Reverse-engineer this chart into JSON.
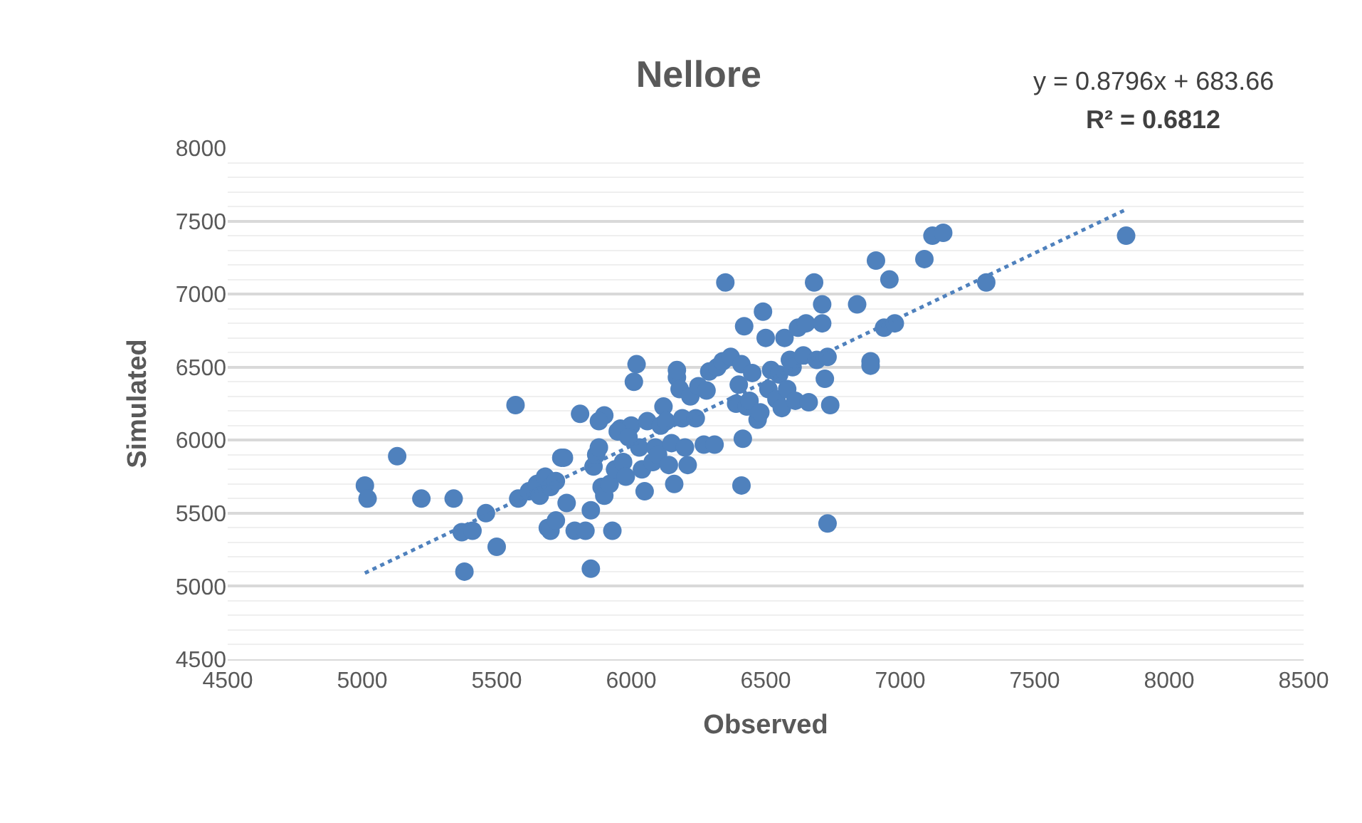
{
  "chart_data": {
    "type": "scatter",
    "title": "Nellore",
    "xlabel": "Observed",
    "ylabel": "Simulated",
    "annotations": [
      "y = 0.8796x + 683.66",
      "R² = 0.6812"
    ],
    "xlim": [
      4500,
      8500
    ],
    "xticks": [
      4500,
      5000,
      5500,
      6000,
      6500,
      7000,
      7500,
      8000,
      8500
    ],
    "ylim": [
      4500,
      8000
    ],
    "yticks": [
      4500,
      5000,
      5500,
      6000,
      6500,
      7000,
      7500,
      8000
    ],
    "grid": "y",
    "series": [
      {
        "color": "#4f81bd",
        "marker": "circle",
        "x": [
          5010,
          5020,
          5130,
          5220,
          5340,
          5570,
          5380,
          5370,
          5410,
          5460,
          5500,
          5740,
          5850,
          5580,
          5620,
          5650,
          5660,
          5680,
          5700,
          5720,
          5690,
          5700,
          5720,
          5760,
          5750,
          5790,
          5830,
          5810,
          5850,
          5860,
          5870,
          5880,
          5900,
          5880,
          5890,
          5900,
          5920,
          5930,
          5940,
          5960,
          5970,
          5980,
          6000,
          6010,
          6020,
          6030,
          6040,
          6050,
          6060,
          6080,
          6090,
          6100,
          6110,
          6120,
          6130,
          6140,
          6150,
          6160,
          6170,
          6170,
          6180,
          6190,
          6200,
          6210,
          6220,
          6240,
          6250,
          6270,
          6280,
          6290,
          6310,
          6320,
          6340,
          6350,
          6370,
          6390,
          6400,
          6410,
          6410,
          6415,
          6420,
          6430,
          6440,
          6450,
          6470,
          6480,
          6490,
          6500,
          6510,
          6520,
          6540,
          6550,
          6560,
          6570,
          6580,
          6590,
          6600,
          6610,
          6620,
          6640,
          6650,
          6660,
          6680,
          6690,
          6710,
          6710,
          6720,
          6730,
          6730,
          6740,
          6840,
          6890,
          6890,
          6910,
          6940,
          6960,
          6980,
          7090,
          7120,
          7160,
          7320,
          7840,
          5950,
          5990
        ],
        "values": [
          5690,
          5600,
          5890,
          5600,
          5600,
          6240,
          5100,
          5370,
          5380,
          5500,
          5270,
          5880,
          5120,
          5600,
          5650,
          5700,
          5620,
          5750,
          5680,
          5720,
          5400,
          5380,
          5450,
          5570,
          5880,
          5380,
          5380,
          6180,
          5520,
          5820,
          5900,
          5950,
          6170,
          6130,
          5680,
          5620,
          5700,
          5380,
          5800,
          6080,
          5850,
          5750,
          6100,
          6400,
          6520,
          5950,
          5800,
          5650,
          6130,
          5850,
          5950,
          5900,
          6100,
          6230,
          6130,
          5830,
          5980,
          5700,
          6430,
          6480,
          6350,
          6150,
          5950,
          5830,
          6300,
          6150,
          6370,
          5970,
          6340,
          6470,
          5970,
          6500,
          6540,
          7080,
          6570,
          6250,
          6380,
          6520,
          5690,
          6010,
          6780,
          6230,
          6270,
          6460,
          6140,
          6190,
          6880,
          6700,
          6350,
          6480,
          6280,
          6450,
          6220,
          6700,
          6350,
          6550,
          6500,
          6270,
          6770,
          6580,
          6800,
          6260,
          7080,
          6550,
          6930,
          6800,
          6420,
          6570,
          5430,
          6240,
          6930,
          6540,
          6510,
          7230,
          6770,
          7100,
          6800,
          7240,
          7400,
          7420,
          7080,
          7400,
          6060,
          6020
        ]
      },
      {
        "type": "line",
        "color": "#4f81bd",
        "line_style": "dotted",
        "x": [
          5010,
          7840
        ],
        "values": [
          5090,
          7580
        ]
      }
    ]
  }
}
